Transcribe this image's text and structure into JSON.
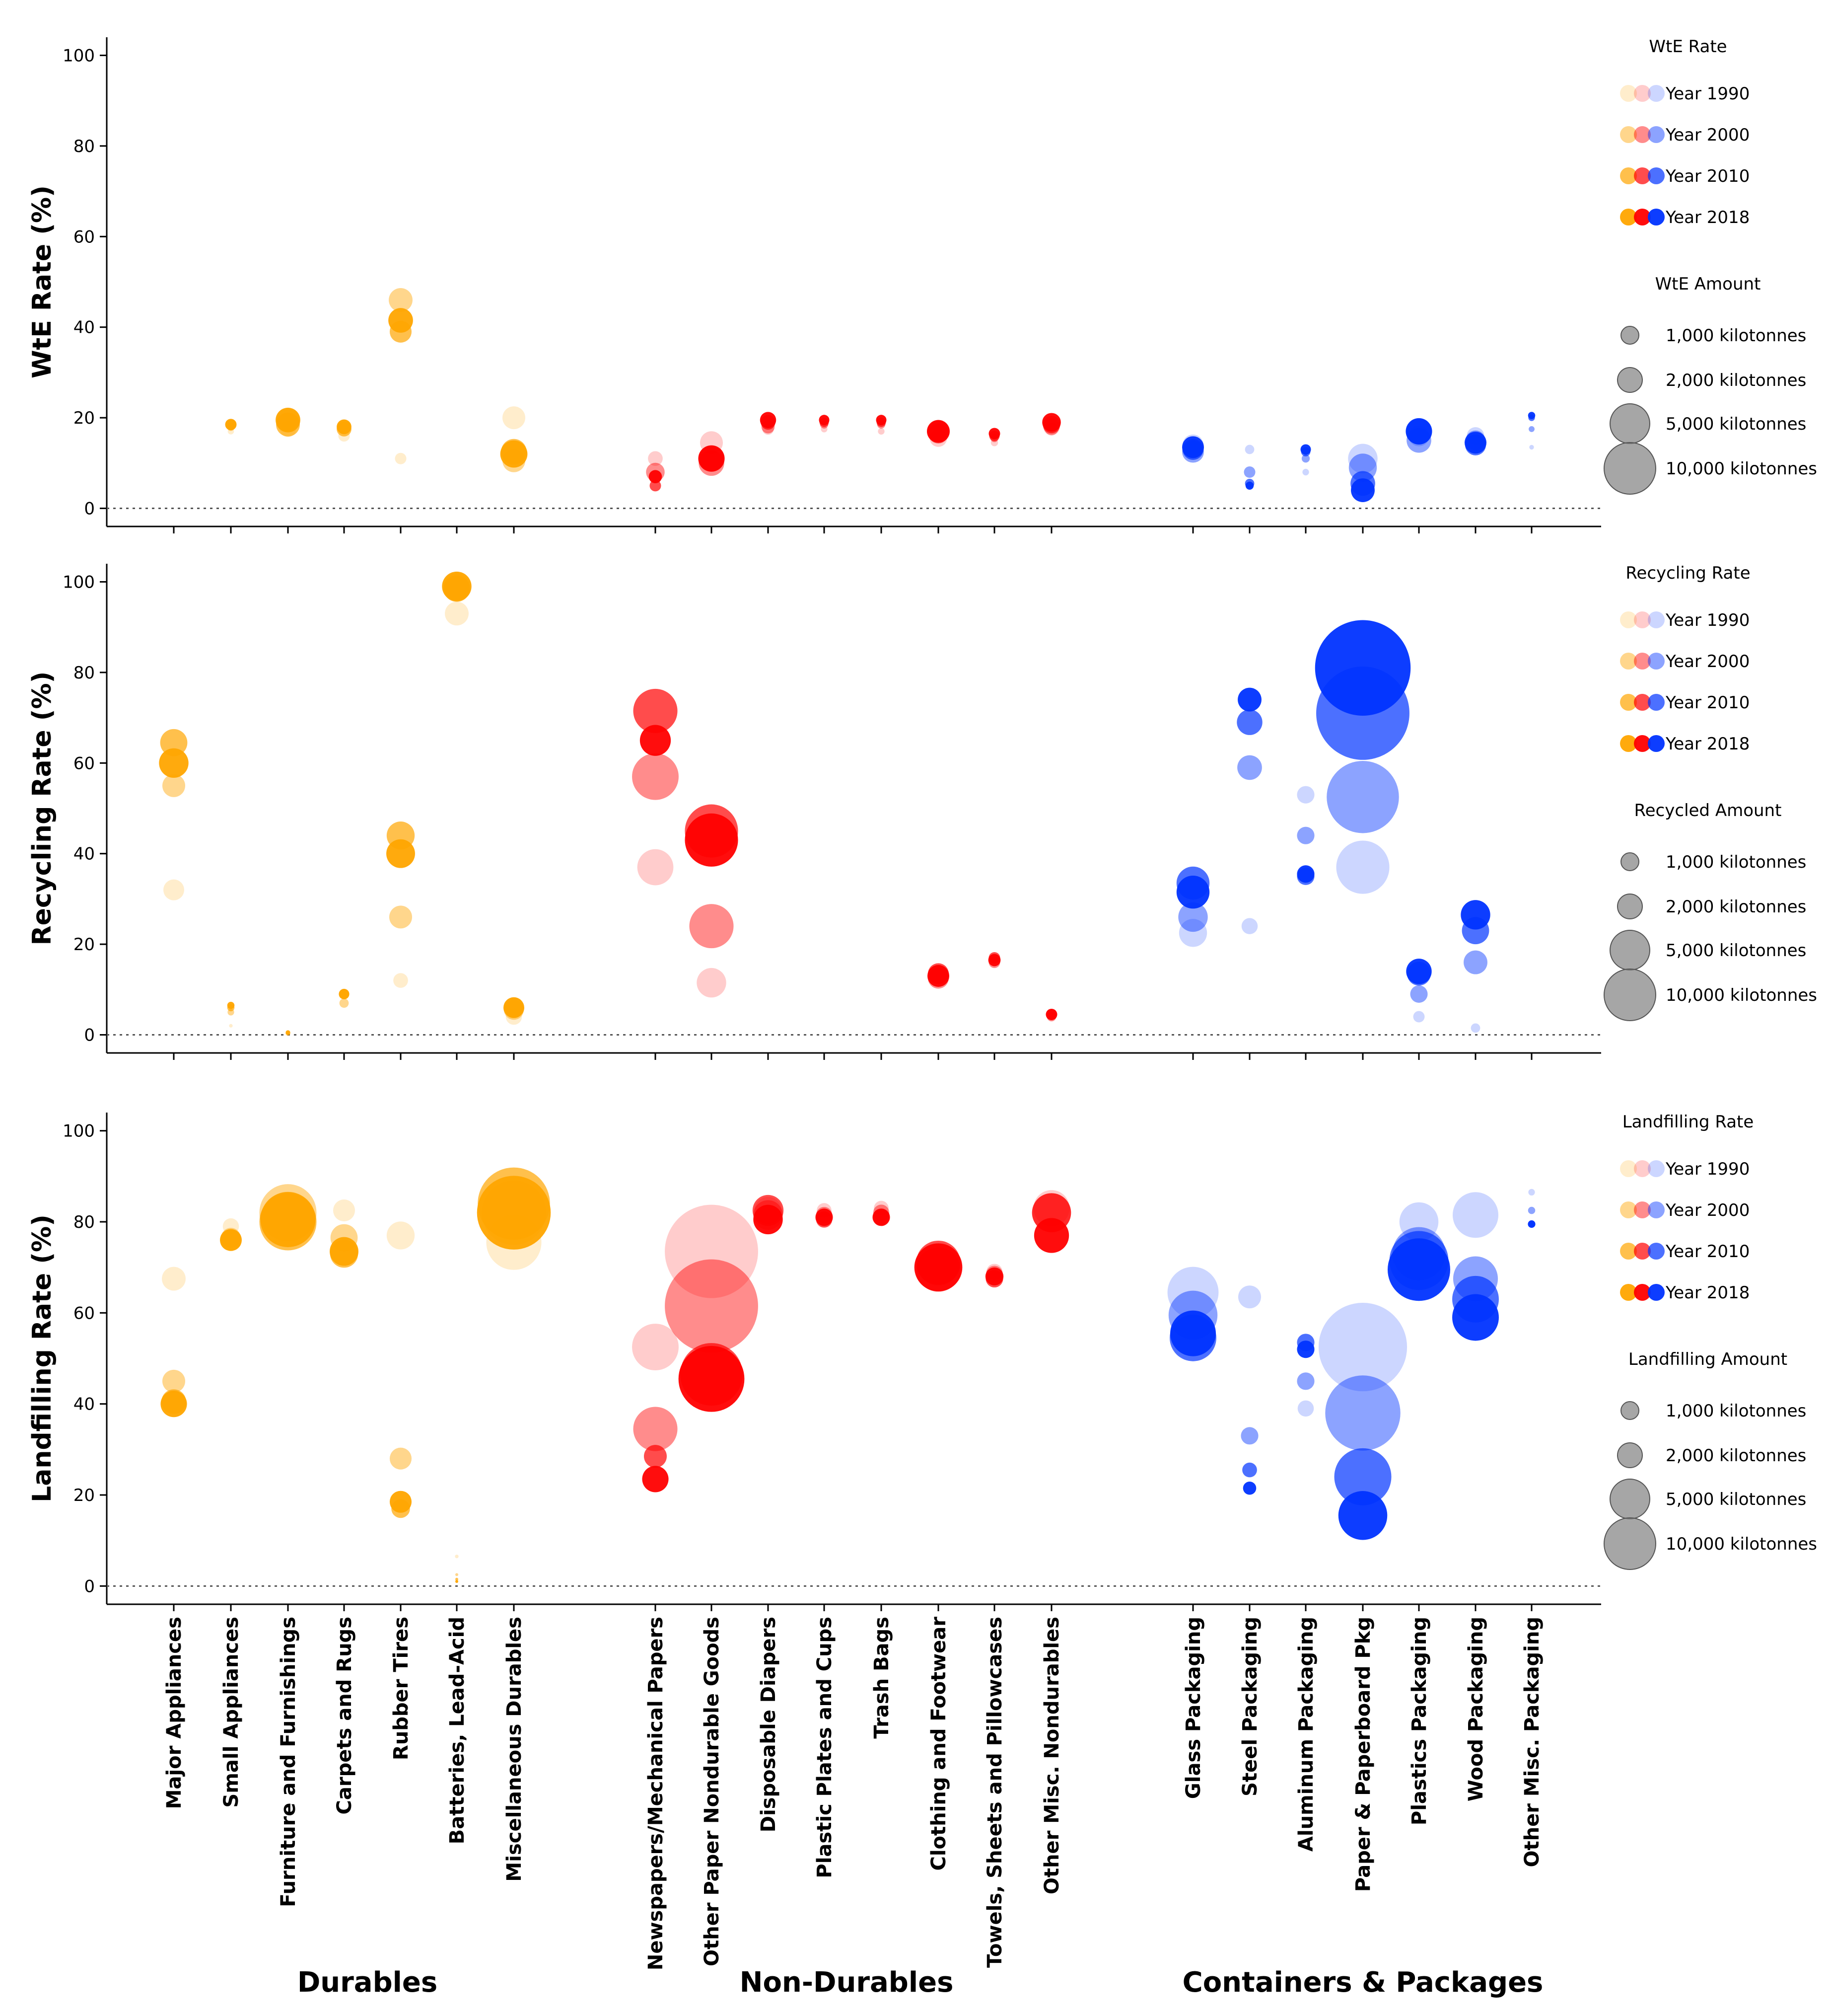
{
  "colors": {
    "durables": "#ffa500",
    "non_durables": "#ff0000",
    "containers": "#0033ff",
    "size_legend": "#808080"
  },
  "groups": [
    "Durables",
    "Non-Durables",
    "Containers & Packages"
  ],
  "legend_years": [
    "Year 1990",
    "Year 2000",
    "Year 2010",
    "Year 2018"
  ],
  "chart_data": [
    {
      "type": "scatter",
      "ylabel": "WtE Rate (%)",
      "ylim": [
        -4,
        104
      ],
      "yticks": [
        "0",
        "20",
        "40",
        "60",
        "80",
        "100"
      ],
      "legend": {
        "rate_title": "WtE Rate",
        "amount_title": "WtE Amount",
        "amounts": [
          "1,000 kilotonnes",
          "2,000 kilotonnes",
          "5,000 kilotonnes",
          "10,000 kilotonnes"
        ]
      },
      "categories": [
        "Major Appliances",
        "Small Appliances",
        "Furniture and Furnishings",
        "Carpets and Rugs",
        "Rubber Tires",
        "Batteries, Lead-Acid",
        "Miscellaneous Durables",
        "Newspapers/Mechanical Papers",
        "Other Paper Nondurable Goods",
        "Disposable Diapers",
        "Plastic Plates and Cups",
        "Trash Bags",
        "Clothing and Footwear",
        "Towels, Sheets and Pillowcases",
        "Other Misc. Nondurables",
        "Glass Packaging",
        "Steel Packaging",
        "Aluminum Packaging",
        "Paper & Paperboard Pkg",
        "Plastics Packaging",
        "Wood Packaging",
        "Other Misc. Packaging"
      ],
      "series": [
        {
          "name": "Year 1990",
          "values": [
            null,
            17,
            17.5,
            16,
            11,
            null,
            20,
            11,
            14.5,
            17.5,
            17.5,
            17,
            15.5,
            14.5,
            17.5,
            14,
            13,
            8,
            11,
            16,
            16,
            13.5
          ],
          "amounts": [
            null,
            90,
            600,
            300,
            300,
            null,
            1200,
            500,
            1200,
            300,
            100,
            100,
            700,
            120,
            400,
            1000,
            200,
            100,
            2000,
            1000,
            700,
            50
          ]
        },
        {
          "name": "Year 2000",
          "values": [
            null,
            18,
            19.5,
            18,
            46,
            null,
            10.5,
            8,
            10,
            18,
            18.5,
            18.5,
            16.5,
            15.5,
            18,
            12.5,
            8,
            11,
            9,
            15,
            15,
            17.5
          ],
          "amounts": [
            null,
            150,
            1100,
            400,
            1300,
            null,
            1200,
            800,
            1500,
            400,
            150,
            150,
            900,
            150,
            600,
            1100,
            300,
            150,
            1800,
            1400,
            900,
            80
          ]
        },
        {
          "name": "Year 2010",
          "values": [
            null,
            18.5,
            18.5,
            17.5,
            39,
            null,
            12.5,
            5,
            11,
            19,
            19,
            19,
            17,
            16,
            18.5,
            13,
            5.5,
            12.5,
            5.5,
            17,
            14,
            20
          ],
          "amounts": [
            null,
            250,
            1300,
            500,
            1100,
            null,
            1500,
            300,
            1500,
            500,
            200,
            200,
            1100,
            250,
            700,
            1000,
            200,
            200,
            1400,
            1500,
            1000,
            100
          ]
        },
        {
          "name": "Year 2018",
          "values": [
            null,
            18.5,
            19.5,
            18,
            41.5,
            null,
            12,
            7,
            11,
            19.5,
            19.5,
            19.5,
            17,
            16.5,
            19,
            13.5,
            5,
            13,
            4,
            17,
            14.5,
            20.5
          ],
          "amounts": [
            null,
            300,
            1400,
            500,
            1400,
            null,
            1700,
            400,
            1600,
            600,
            250,
            250,
            1200,
            300,
            800,
            1100,
            150,
            250,
            1300,
            1600,
            1100,
            120
          ]
        }
      ]
    },
    {
      "type": "scatter",
      "ylabel": "Recycling Rate (%)",
      "ylim": [
        -4,
        104
      ],
      "yticks": [
        "0",
        "20",
        "40",
        "60",
        "80",
        "100"
      ],
      "legend": {
        "rate_title": "Recycling Rate",
        "amount_title": "Recycled Amount",
        "amounts": [
          "1,000 kilotonnes",
          "2,000 kilotonnes",
          "5,000 kilotonnes",
          "10,000 kilotonnes"
        ]
      },
      "categories": [
        "Major Appliances",
        "Small Appliances",
        "Furniture and Furnishings",
        "Carpets and Rugs",
        "Rubber Tires",
        "Batteries, Lead-Acid",
        "Miscellaneous Durables",
        "Newspapers/Mechanical Papers",
        "Other Paper Nondurable Goods",
        "Disposable Diapers",
        "Plastic Plates and Cups",
        "Trash Bags",
        "Clothing and Footwear",
        "Towels, Sheets and Pillowcases",
        "Other Misc. Nondurables",
        "Glass Packaging",
        "Steel Packaging",
        "Aluminum Packaging",
        "Paper & Paperboard Pkg",
        "Plastics Packaging",
        "Wood Packaging",
        "Other Misc. Packaging"
      ],
      "series": [
        {
          "name": "Year 1990",
          "values": [
            32,
            2,
            null,
            null,
            12,
            93,
            4,
            37,
            11.5,
            null,
            null,
            null,
            null,
            null,
            null,
            22.5,
            24,
            53,
            37,
            4,
            1.5,
            null
          ],
          "amounts": [
            1000,
            30,
            null,
            null,
            500,
            1300,
            600,
            3000,
            2000,
            null,
            null,
            null,
            null,
            null,
            null,
            1800,
            600,
            700,
            6500,
            300,
            200,
            null
          ]
        },
        {
          "name": "Year 2000",
          "values": [
            55,
            5,
            0.3,
            7,
            26,
            99,
            5.5,
            57,
            24,
            null,
            null,
            null,
            12.5,
            16,
            4,
            26,
            59,
            44,
            52.5,
            9,
            16,
            null
          ],
          "amounts": [
            1200,
            100,
            50,
            200,
            1200,
            1600,
            900,
            5000,
            4500,
            null,
            null,
            null,
            1000,
            300,
            200,
            2000,
            1400,
            700,
            12000,
            700,
            1300,
            null
          ]
        },
        {
          "name": "Year 2010",
          "values": [
            64.5,
            6,
            null,
            9,
            44,
            98.5,
            6,
            71.5,
            45,
            null,
            null,
            null,
            13.5,
            17,
            4.5,
            33.5,
            69,
            35,
            71,
            13.5,
            23,
            null
          ],
          "amounts": [
            1700,
            120,
            null,
            250,
            1800,
            1600,
            900,
            4500,
            6500,
            null,
            null,
            null,
            1000,
            300,
            250,
            2500,
            1500,
            700,
            20000,
            1300,
            1700,
            null
          ]
        },
        {
          "name": "Year 2018",
          "values": [
            60,
            6.5,
            0.5,
            9,
            40,
            99,
            6,
            65,
            43,
            null,
            null,
            null,
            13,
            16.5,
            4.5,
            31.5,
            74,
            35.5,
            81,
            14,
            26.5,
            null
          ],
          "amounts": [
            2000,
            120,
            50,
            250,
            1900,
            2000,
            1000,
            2200,
            6500,
            null,
            null,
            null,
            1100,
            350,
            300,
            2500,
            1300,
            700,
            21000,
            1500,
            2000,
            null
          ]
        }
      ]
    },
    {
      "type": "scatter",
      "ylabel": "Landfilling Rate (%)",
      "ylim": [
        -4,
        104
      ],
      "yticks": [
        "0",
        "20",
        "40",
        "60",
        "80",
        "100"
      ],
      "legend": {
        "rate_title": "Landfilling Rate",
        "amount_title": "Landfilling Amount",
        "amounts": [
          "1,000 kilotonnes",
          "2,000 kilotonnes",
          "5,000 kilotonnes",
          "10,000 kilotonnes"
        ]
      },
      "categories": [
        "Major Appliances",
        "Small Appliances",
        "Furniture and Furnishings",
        "Carpets and Rugs",
        "Rubber Tires",
        "Batteries, Lead-Acid",
        "Miscellaneous Durables",
        "Newspapers/Mechanical Papers",
        "Other Paper Nondurable Goods",
        "Disposable Diapers",
        "Plastic Plates and Cups",
        "Trash Bags",
        "Clothing and Footwear",
        "Towels, Sheets and Pillowcases",
        "Other Misc. Nondurables",
        "Glass Packaging",
        "Steel Packaging",
        "Aluminum Packaging",
        "Paper & Paperboard Pkg",
        "Plastics Packaging",
        "Wood Packaging",
        "Other Misc. Packaging"
      ],
      "series": [
        {
          "name": "Year 1990",
          "values": [
            67.5,
            79,
            81,
            82.5,
            77,
            6.5,
            75.5,
            52.5,
            73.5,
            82.5,
            82.5,
            83,
            70.5,
            69,
            83,
            64.5,
            63.5,
            39,
            52.5,
            80,
            81.5,
            86.5
          ],
          "amounts": [
            1300,
            600,
            6000,
            1100,
            1800,
            30,
            7000,
            5000,
            20000,
            1700,
            500,
            500,
            4000,
            600,
            3000,
            6000,
            1200,
            600,
            18000,
            3500,
            4800,
            100
          ]
        },
        {
          "name": "Year 2000",
          "values": [
            45,
            76.5,
            82,
            76.5,
            28,
            2.5,
            82,
            34.5,
            61.5,
            81.5,
            81.5,
            82,
            69.5,
            68.5,
            82,
            59.5,
            33,
            45,
            38,
            73,
            67.5,
            82.5
          ],
          "amounts": [
            1200,
            900,
            7500,
            1700,
            1100,
            20,
            9500,
            4500,
            20000,
            2000,
            600,
            600,
            4500,
            650,
            3500,
            5500,
            700,
            700,
            13000,
            6500,
            4600,
            120
          ]
        },
        {
          "name": "Year 2010",
          "values": [
            40.5,
            76,
            80,
            73,
            17,
            1.5,
            84,
            28.5,
            46.5,
            82.5,
            80.5,
            81,
            71,
            67.5,
            82,
            54.5,
            25.5,
            53.5,
            24,
            71.5,
            63,
            79.5
          ],
          "amounts": [
            1400,
            1000,
            7500,
            1800,
            800,
            20,
            12000,
            1200,
            9000,
            2200,
            600,
            600,
            4500,
            700,
            3500,
            5000,
            500,
            700,
            7500,
            8000,
            5000,
            120
          ]
        },
        {
          "name": "Year 2018",
          "values": [
            40,
            76,
            80.5,
            73.5,
            18.5,
            1,
            82,
            23.5,
            45.5,
            80.5,
            81,
            81,
            70,
            68,
            77,
            55.5,
            21.5,
            52,
            15.5,
            69.5,
            59,
            79.5
          ],
          "amounts": [
            1600,
            1100,
            7000,
            1900,
            1100,
            20,
            12500,
            1600,
            10000,
            2000,
            700,
            700,
            5300,
            750,
            2800,
            4800,
            400,
            700,
            5500,
            9000,
            5000,
            130
          ]
        }
      ]
    }
  ]
}
